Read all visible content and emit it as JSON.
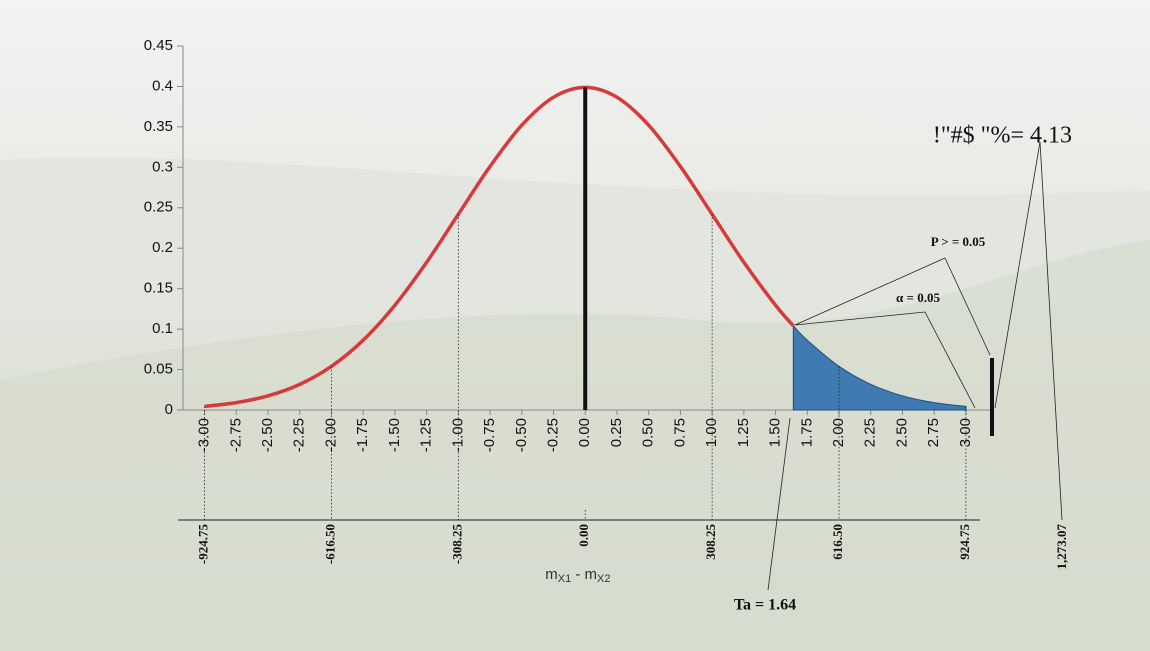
{
  "chart_data": {
    "type": "line",
    "xlim": [
      -3.17,
      3.19
    ],
    "xticks": [
      {
        "value": -3,
        "label": "-3.00"
      },
      {
        "value": -2.75,
        "label": "-2.75"
      },
      {
        "value": -2.5,
        "label": "-2.50"
      },
      {
        "value": -2.25,
        "label": "-2.25"
      },
      {
        "value": -2,
        "label": "-2.00"
      },
      {
        "value": -1.75,
        "label": "-1.75"
      },
      {
        "value": -1.5,
        "label": "-1.50"
      },
      {
        "value": -1.25,
        "label": "-1.25"
      },
      {
        "value": -1,
        "label": "-1.00"
      },
      {
        "value": -0.75,
        "label": "-0.75"
      },
      {
        "value": -0.5,
        "label": "-0.50"
      },
      {
        "value": -0.25,
        "label": "-0.25"
      },
      {
        "value": 0,
        "label": "0.00"
      },
      {
        "value": 0.25,
        "label": "0.25"
      },
      {
        "value": 0.5,
        "label": "0.50"
      },
      {
        "value": 0.75,
        "label": "0.75"
      },
      {
        "value": 1,
        "label": "1.00"
      },
      {
        "value": 1.25,
        "label": "1.25"
      },
      {
        "value": 1.5,
        "label": "1.50"
      },
      {
        "value": 1.75,
        "label": "1.75"
      },
      {
        "value": 2,
        "label": "2.00"
      },
      {
        "value": 2.25,
        "label": "2.25"
      },
      {
        "value": 2.5,
        "label": "2.50"
      },
      {
        "value": 2.75,
        "label": "2.75"
      },
      {
        "value": 3,
        "label": "3.00"
      }
    ],
    "ylim": [
      0,
      0.45
    ],
    "yticks": [
      0,
      0.05,
      0.1,
      0.15,
      0.2,
      0.25,
      0.3,
      0.35,
      0.4,
      0.45
    ],
    "series": [
      {
        "color": "#d63a3a",
        "x": [
          -3,
          -2.75,
          -2.5,
          -2.25,
          -2,
          -1.75,
          -1.5,
          -1.25,
          -1,
          -0.75,
          -0.5,
          -0.25,
          0,
          0.25,
          0.5,
          0.75,
          1,
          1.25,
          1.5,
          1.64
        ],
        "values": [
          0.0044,
          0.0091,
          0.0175,
          0.0317,
          0.054,
          0.0863,
          0.1295,
          0.1826,
          0.242,
          0.3011,
          0.3521,
          0.3867,
          0.3989,
          0.3867,
          0.3521,
          0.3011,
          0.242,
          0.1826,
          0.1295,
          0.104
        ]
      }
    ],
    "area": {
      "color": "#2f6fae",
      "x": [
        1.64,
        1.75,
        2,
        2.25,
        2.5,
        2.75,
        3
      ],
      "values": [
        0.104,
        0.0863,
        0.054,
        0.0317,
        0.0175,
        0.0091,
        0.0044
      ]
    },
    "x2lim": [
      -977.2,
      983.3
    ],
    "x2ticks": [
      {
        "value": -924.75,
        "label": "-924.75"
      },
      {
        "value": -616.5,
        "label": "-616.50"
      },
      {
        "value": -308.25,
        "label": "-308.25"
      },
      {
        "value": 0,
        "label": "0.00"
      },
      {
        "value": 308.25,
        "label": "308.25"
      },
      {
        "value": 616.5,
        "label": "616.50"
      },
      {
        "value": 924.75,
        "label": "924.75"
      }
    ],
    "x2_label": [
      "m",
      "X1",
      " - m",
      "X2"
    ],
    "annotations": {
      "ta": "Ta = 1.64",
      "p": "P > = 0.05",
      "alpha": "α =  0.05",
      "tcalc": "!\"#$ \"%= 4.13",
      "diff": "1,273.07"
    }
  }
}
